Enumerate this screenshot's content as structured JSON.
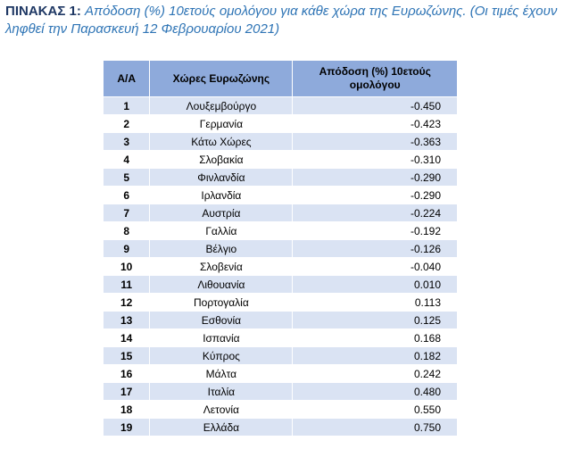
{
  "caption": {
    "label": "ΠΙΝΑΚΑΣ 1:",
    "text": "Απόδοση (%) 10ετούς ομολόγου για κάθε χώρα της Ευρωζώνης. (Οι τιμές έχουν ληφθεί την Παρασκευή 12 Φεβρουαρίου 2021)"
  },
  "table": {
    "headers": [
      "Α/Α",
      "Χώρες Ευρωζώνης",
      "Απόδοση (%) 10ετούς ομολόγου"
    ],
    "rows": [
      {
        "num": "1",
        "country": "Λουξεμβούργο",
        "yield": "-0.450"
      },
      {
        "num": "2",
        "country": "Γερμανία",
        "yield": "-0.423"
      },
      {
        "num": "3",
        "country": "Κάτω Χώρες",
        "yield": "-0.363"
      },
      {
        "num": "4",
        "country": "Σλοβακία",
        "yield": "-0.310"
      },
      {
        "num": "5",
        "country": "Φινλανδία",
        "yield": "-0.290"
      },
      {
        "num": "6",
        "country": "Ιρλανδία",
        "yield": "-0.290"
      },
      {
        "num": "7",
        "country": "Αυστρία",
        "yield": "-0.224"
      },
      {
        "num": "8",
        "country": "Γαλλία",
        "yield": "-0.192"
      },
      {
        "num": "9",
        "country": "Βέλγιο",
        "yield": "-0.126"
      },
      {
        "num": "10",
        "country": "Σλοβενία",
        "yield": "-0.040"
      },
      {
        "num": "11",
        "country": "Λιθουανία",
        "yield": "0.010"
      },
      {
        "num": "12",
        "country": "Πορτογαλία",
        "yield": "0.113"
      },
      {
        "num": "13",
        "country": "Εσθονία",
        "yield": "0.125"
      },
      {
        "num": "14",
        "country": "Ισπανία",
        "yield": "0.168"
      },
      {
        "num": "15",
        "country": "Κύπρος",
        "yield": "0.182"
      },
      {
        "num": "16",
        "country": "Μάλτα",
        "yield": "0.242"
      },
      {
        "num": "17",
        "country": "Ιταλία",
        "yield": "0.480"
      },
      {
        "num": "18",
        "country": "Λετονία",
        "yield": "0.550"
      },
      {
        "num": "19",
        "country": "Ελλάδα",
        "yield": "0.750"
      }
    ]
  },
  "colors": {
    "header_bg": "#8eaadb",
    "row_alt_bg": "#dae3f3",
    "caption_label": "#1f3864",
    "caption_text": "#2e74b5"
  }
}
